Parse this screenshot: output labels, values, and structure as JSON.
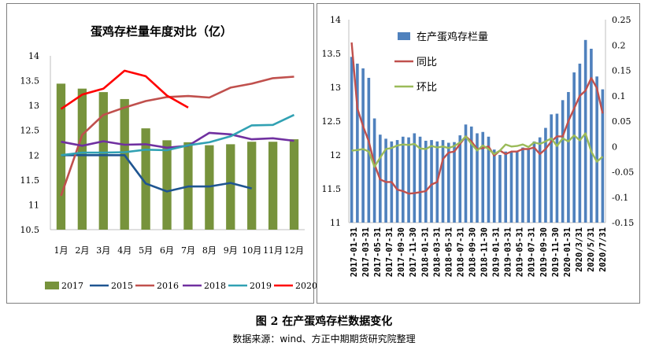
{
  "figure": {
    "caption": "图 2 在产蛋鸡存栏数据变化",
    "source": "数据来源：wind、方正中期期货研究院整理"
  },
  "chart_data": [
    {
      "type": "bar+line",
      "title": "蛋鸡存栏量年度对比（亿）",
      "categories": [
        "1月",
        "2月",
        "3月",
        "4月",
        "5月",
        "6月",
        "7月",
        "8月",
        "9月",
        "10月",
        "11月",
        "12月"
      ],
      "ylim": [
        10.5,
        14
      ],
      "yticks": [
        "10.5",
        "11",
        "11.5",
        "12",
        "12.5",
        "13",
        "13.5",
        "14"
      ],
      "bar_series": {
        "name": "2017",
        "color": "#77933c",
        "values": [
          13.44,
          13.34,
          13.27,
          13.13,
          12.54,
          12.3,
          12.26,
          12.2,
          12.22,
          12.27,
          12.27,
          12.32
        ]
      },
      "series": [
        {
          "name": "2015",
          "color": "#1f5591",
          "values": [
            12.0,
            12.0,
            12.0,
            12.0,
            11.43,
            11.27,
            11.37,
            11.37,
            11.44,
            11.33,
            null,
            null
          ]
        },
        {
          "name": "2016",
          "color": "#c0504d",
          "values": [
            11.18,
            12.41,
            12.81,
            12.96,
            13.09,
            13.17,
            13.19,
            13.16,
            13.36,
            13.44,
            13.55,
            13.58
          ]
        },
        {
          "name": "2018",
          "color": "#7030a0",
          "values": [
            12.27,
            12.19,
            12.28,
            12.21,
            12.22,
            12.15,
            12.19,
            12.45,
            12.42,
            12.32,
            12.34,
            12.29
          ]
        },
        {
          "name": "2019",
          "color": "#31a1b3",
          "values": [
            12.0,
            12.05,
            12.05,
            12.06,
            12.11,
            12.1,
            12.2,
            12.26,
            12.38,
            12.6,
            12.61,
            12.81
          ]
        },
        {
          "name": "2020",
          "color": "#ff0000",
          "values": [
            12.93,
            13.22,
            13.34,
            13.7,
            13.59,
            13.2,
            12.96,
            null,
            null,
            null,
            null,
            null
          ]
        }
      ],
      "legend": [
        "2017",
        "2015",
        "2016",
        "2018",
        "2019",
        "2020"
      ],
      "legend_position": "bottom"
    },
    {
      "type": "bar+line dual-axis",
      "title": "",
      "xlabels": [
        "2017-01-31",
        "2017-03-31",
        "2017-05-31",
        "2017-07-31",
        "2017-09-30",
        "2017-11-30",
        "2018-01-31",
        "2018-03-31",
        "2018-05-31",
        "2018-07-31",
        "2018-09-30",
        "2018-11-30",
        "2019-01-31",
        "2019-03-31",
        "2019-05-31",
        "2019-07-31",
        "2019-09-30",
        "2019-11-30",
        "2020-01-31",
        "2020/3/31",
        "2020/5/31",
        "2020/7/31"
      ],
      "y_left": {
        "ylim": [
          11,
          14
        ],
        "yticks": [
          "11",
          "11.5",
          "12",
          "12.5",
          "13",
          "13.5",
          "14"
        ]
      },
      "y_right": {
        "ylim": [
          -0.15,
          0.25
        ],
        "yticks": [
          "-0.15",
          "-0.1",
          "-0.05",
          "0",
          "0.05",
          "0.1",
          "0.15",
          "0.2",
          "0.25"
        ]
      },
      "series": [
        {
          "name": "在产蛋鸡存栏量",
          "axis": "left",
          "kind": "bar",
          "color": "#4f81bd",
          "values": [
            13.45,
            13.35,
            13.28,
            13.14,
            12.54,
            12.3,
            12.24,
            12.2,
            12.22,
            12.27,
            12.26,
            12.32,
            12.27,
            12.21,
            12.22,
            12.2,
            12.22,
            12.18,
            12.19,
            12.29,
            12.45,
            12.42,
            12.32,
            12.34,
            12.27,
            12.08,
            12.0,
            12.05,
            12.05,
            12.06,
            12.11,
            12.1,
            12.2,
            12.26,
            12.4,
            12.6,
            12.61,
            12.81,
            12.93,
            13.22,
            13.35,
            13.7,
            13.57,
            13.16,
            12.97
          ]
        },
        {
          "name": "同比",
          "axis": "right",
          "kind": "line",
          "color": "#c0504d",
          "values": [
            0.205,
            0.075,
            0.04,
            0.01,
            -0.035,
            -0.065,
            -0.07,
            -0.07,
            -0.085,
            -0.088,
            -0.093,
            -0.092,
            -0.09,
            -0.088,
            -0.075,
            -0.07,
            -0.025,
            -0.012,
            -0.01,
            0.005,
            0.02,
            0.01,
            -0.005,
            -0.003,
            0.0,
            -0.018,
            -0.008,
            -0.015,
            -0.01,
            -0.01,
            -0.005,
            -0.005,
            -0.002,
            -0.015,
            -0.005,
            0.01,
            0.02,
            0.02,
            0.05,
            0.075,
            0.1,
            0.11,
            0.135,
            0.115,
            0.065
          ]
        },
        {
          "name": "环比",
          "axis": "right",
          "kind": "line",
          "color": "#9bbb59",
          "values": [
            -0.008,
            -0.007,
            -0.005,
            -0.01,
            -0.04,
            -0.022,
            -0.005,
            -0.003,
            0.002,
            0.004,
            0.003,
            0.005,
            -0.004,
            -0.005,
            0.001,
            -0.002,
            0.0,
            -0.003,
            0.001,
            0.008,
            0.02,
            0.005,
            -0.008,
            0.002,
            -0.005,
            -0.015,
            -0.008,
            0.004,
            0.0,
            0.001,
            0.004,
            -0.001,
            0.008,
            0.005,
            0.01,
            0.016,
            0.001,
            0.016,
            0.01,
            0.022,
            0.012,
            0.026,
            -0.01,
            -0.03,
            -0.02
          ]
        }
      ],
      "legend": [
        "在产蛋鸡存栏量",
        "同比",
        "环比"
      ],
      "legend_position": "top-left"
    }
  ]
}
